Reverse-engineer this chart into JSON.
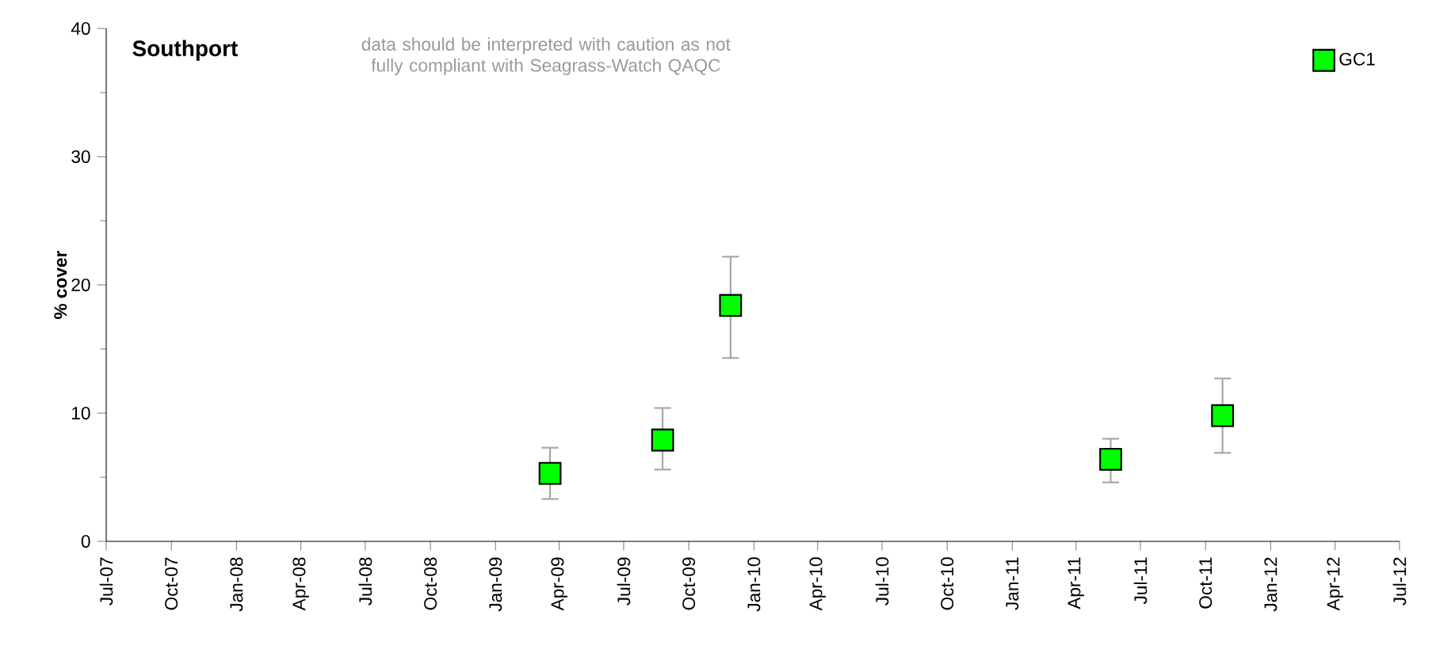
{
  "chart_data": {
    "type": "scatter",
    "title": "Southport",
    "ylabel": "% cover",
    "annotations": [
      "data should be interpreted with caution as not fully compliant with Seagrass-Watch QAQC"
    ],
    "series": [
      {
        "name": "GC1",
        "color": "#00ff00",
        "x": [
          "2009-03-19",
          "2009-08-25",
          "2009-11-29",
          "2011-05-20",
          "2011-10-25"
        ],
        "values": [
          5.3,
          7.9,
          18.4,
          6.4,
          9.8
        ],
        "errors": [
          [
            3.3,
            7.3
          ],
          [
            5.6,
            10.4
          ],
          [
            14.3,
            22.2
          ],
          [
            4.6,
            8.0
          ],
          [
            6.9,
            12.7
          ]
        ]
      }
    ],
    "xlim": [
      "2007-07-01",
      "2012-07-01"
    ],
    "xticks": [
      {
        "value": "2007-07-01",
        "label": "Jul-07"
      },
      {
        "value": "2007-10-01",
        "label": "Oct-07"
      },
      {
        "value": "2008-01-01",
        "label": "Jan-08"
      },
      {
        "value": "2008-04-01",
        "label": "Apr-08"
      },
      {
        "value": "2008-07-01",
        "label": "Jul-08"
      },
      {
        "value": "2008-10-01",
        "label": "Oct-08"
      },
      {
        "value": "2009-01-01",
        "label": "Jan-09"
      },
      {
        "value": "2009-04-01",
        "label": "Apr-09"
      },
      {
        "value": "2009-07-01",
        "label": "Jul-09"
      },
      {
        "value": "2009-10-01",
        "label": "Oct-09"
      },
      {
        "value": "2010-01-01",
        "label": "Jan-10"
      },
      {
        "value": "2010-04-01",
        "label": "Apr-10"
      },
      {
        "value": "2010-07-01",
        "label": "Jul-10"
      },
      {
        "value": "2010-10-01",
        "label": "Oct-10"
      },
      {
        "value": "2011-01-01",
        "label": "Jan-11"
      },
      {
        "value": "2011-04-01",
        "label": "Apr-11"
      },
      {
        "value": "2011-07-01",
        "label": "Jul-11"
      },
      {
        "value": "2011-10-01",
        "label": "Oct-11"
      },
      {
        "value": "2012-01-01",
        "label": "Jan-12"
      },
      {
        "value": "2012-04-01",
        "label": "Apr-12"
      },
      {
        "value": "2012-07-01",
        "label": "Jul-12"
      }
    ],
    "ylim": [
      0,
      40
    ],
    "yticks": [
      0,
      10,
      20,
      30,
      40
    ],
    "marker": "square",
    "grid": false,
    "legend": "top right"
  }
}
